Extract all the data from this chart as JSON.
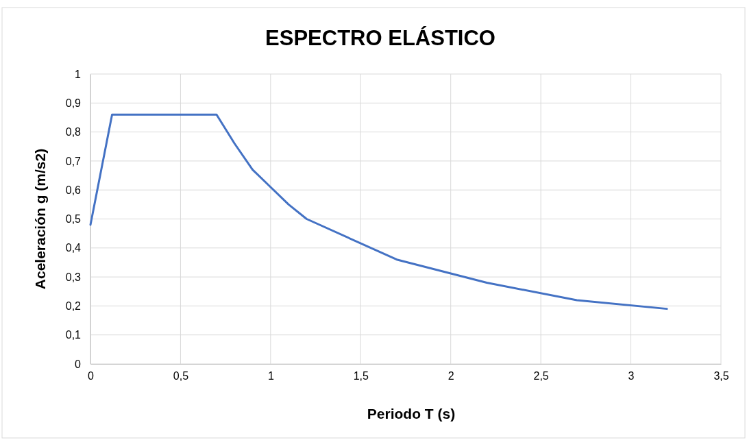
{
  "chart_data": {
    "type": "line",
    "title": "ESPECTRO ELÁSTICO",
    "xlabel": "Periodo T (s)",
    "ylabel": "Aceleración g (m/s2)",
    "x": [
      0,
      0.12,
      0.7,
      0.8,
      0.9,
      1,
      1.1,
      1.2,
      1.7,
      2.2,
      2.7,
      3.2
    ],
    "series": [
      {
        "color": "#4472c4",
        "values": [
          0.48,
          0.86,
          0.86,
          0.76,
          0.67,
          0.61,
          0.55,
          0.5,
          0.36,
          0.28,
          0.22,
          0.19
        ]
      }
    ],
    "xlim": [
      0,
      3.5
    ],
    "xticks": [
      0,
      {
        "value": 0.5,
        "label": "0,5"
      },
      1,
      {
        "value": 1.5,
        "label": "1,5"
      },
      2,
      {
        "value": 2.5,
        "label": "2,5"
      },
      3,
      {
        "value": 3.5,
        "label": "3,5"
      }
    ],
    "ylim": [
      0,
      1
    ],
    "yticks": [
      0,
      {
        "value": 0.1,
        "label": "0,1"
      },
      {
        "value": 0.2,
        "label": "0,2"
      },
      {
        "value": 0.3,
        "label": "0,3"
      },
      {
        "value": 0.4,
        "label": "0,4"
      },
      {
        "value": 0.5,
        "label": "0,5"
      },
      {
        "value": 0.6,
        "label": "0,6"
      },
      {
        "value": 0.7,
        "label": "0,7"
      },
      {
        "value": 0.8,
        "label": "0,8"
      },
      {
        "value": 0.9,
        "label": "0,9"
      },
      1
    ],
    "grid": true,
    "marker": "none",
    "line_style": "solid"
  }
}
